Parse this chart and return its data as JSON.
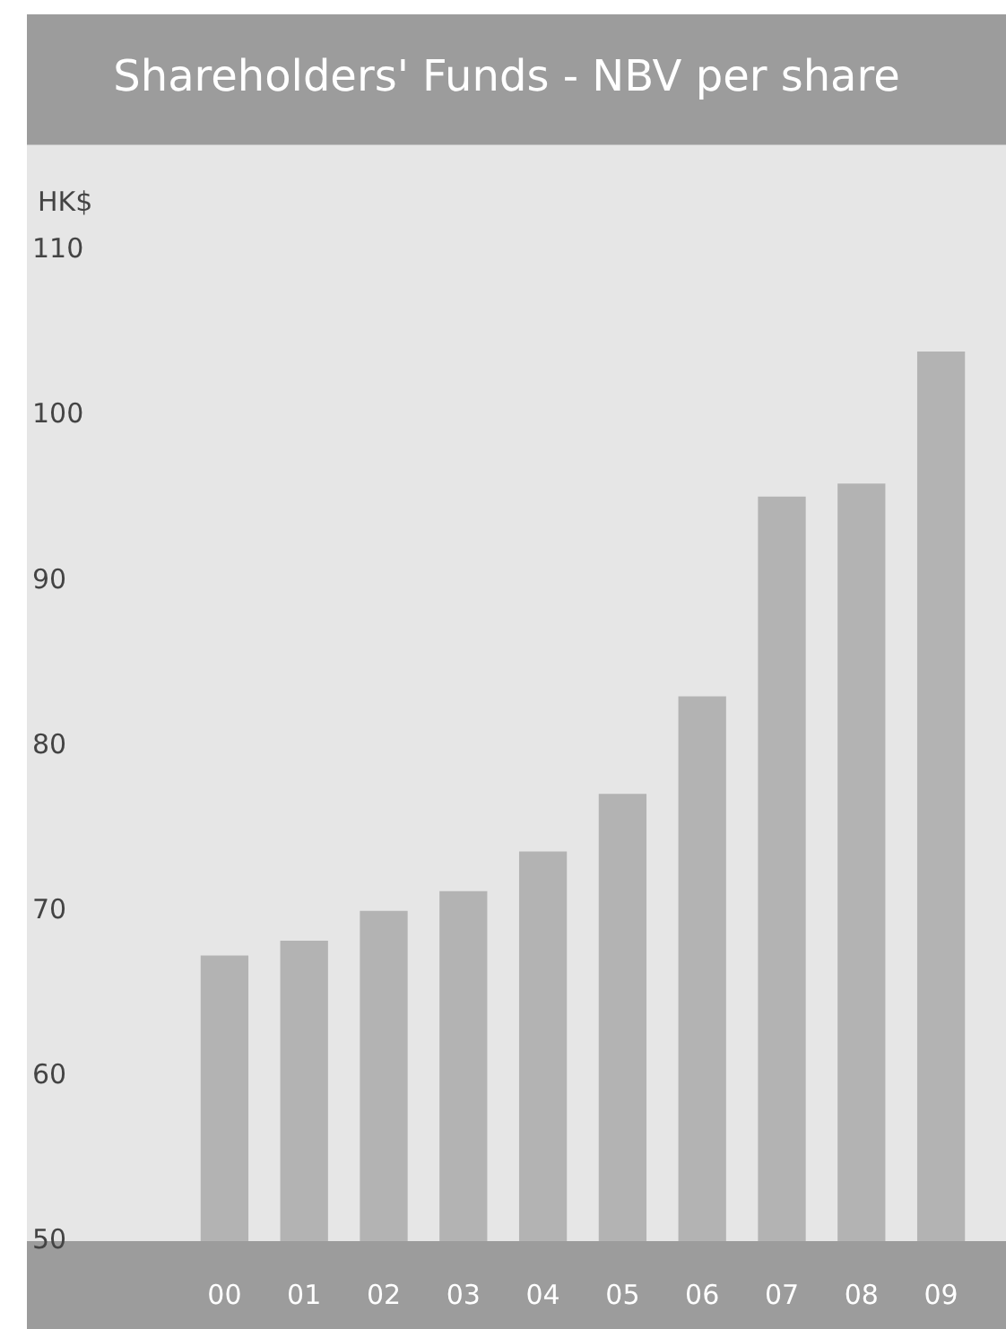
{
  "chart_data": {
    "type": "bar",
    "title": "Shareholders' Funds - NBV per share",
    "ylabel": "HK$",
    "categories": [
      "00",
      "01",
      "02",
      "03",
      "04",
      "05",
      "06",
      "07",
      "08",
      "09"
    ],
    "values": [
      67.3,
      68.2,
      70.0,
      71.2,
      73.6,
      77.1,
      83.0,
      95.1,
      95.9,
      103.9
    ],
    "color": "#b3b3b3",
    "ylim": [
      50,
      110
    ],
    "yticks": [
      50,
      60,
      70,
      80,
      90,
      100,
      110
    ],
    "grid": false,
    "legend": false
  }
}
